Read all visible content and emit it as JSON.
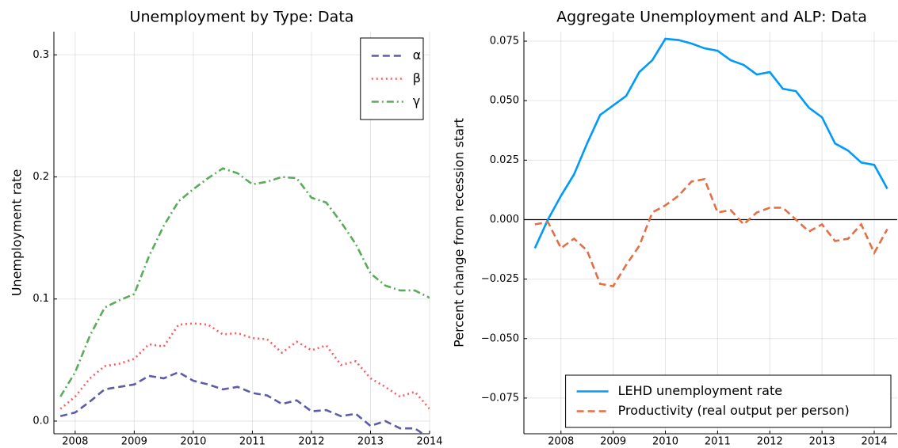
{
  "chart_data": [
    {
      "type": "line",
      "title": "Unemployment by Type: Data",
      "ylabel": "Unemployment rate",
      "x": [
        2007.75,
        2008.0,
        2008.25,
        2008.5,
        2008.75,
        2009.0,
        2009.25,
        2009.5,
        2009.75,
        2010.0,
        2010.25,
        2010.5,
        2010.75,
        2011.0,
        2011.25,
        2011.5,
        2011.75,
        2012.0,
        2012.25,
        2012.5,
        2012.75,
        2013.0,
        2013.25,
        2013.5,
        2013.75,
        2014.0
      ],
      "series": [
        {
          "name": "α",
          "color": "#5d5da6",
          "style": "dash",
          "values": [
            0.004,
            0.007,
            0.016,
            0.026,
            0.028,
            0.03,
            0.037,
            0.035,
            0.04,
            0.033,
            0.03,
            0.026,
            0.028,
            0.023,
            0.021,
            0.014,
            0.017,
            0.008,
            0.009,
            0.004,
            0.006,
            -0.004,
            0.0,
            -0.006,
            -0.006,
            -0.014
          ]
        },
        {
          "name": "β",
          "color": "#ff5a5f",
          "style": "dot",
          "values": [
            0.01,
            0.02,
            0.035,
            0.045,
            0.047,
            0.051,
            0.063,
            0.061,
            0.079,
            0.08,
            0.079,
            0.071,
            0.072,
            0.068,
            0.067,
            0.056,
            0.065,
            0.058,
            0.062,
            0.046,
            0.049,
            0.035,
            0.028,
            0.02,
            0.024,
            0.01
          ]
        },
        {
          "name": "γ",
          "color": "#5aab5a",
          "style": "dashdot",
          "values": [
            0.02,
            0.04,
            0.07,
            0.093,
            0.099,
            0.104,
            0.135,
            0.16,
            0.18,
            0.19,
            0.199,
            0.207,
            0.203,
            0.194,
            0.196,
            0.2,
            0.199,
            0.183,
            0.179,
            0.163,
            0.145,
            0.121,
            0.111,
            0.107,
            0.107,
            0.101
          ]
        }
      ],
      "xlim": [
        2007.64,
        2014.0
      ],
      "xticks": [
        2008,
        2009,
        2010,
        2011,
        2012,
        2013,
        2014
      ],
      "ylim": [
        -0.0104,
        0.319
      ],
      "yticks": [
        {
          "value": 0,
          "label": "0.0"
        },
        0.1,
        0.2,
        0.3
      ],
      "grid": true,
      "legend": "top-right"
    },
    {
      "type": "line",
      "title": "Aggregate Unemployment and ALP: Data",
      "ylabel": "Percent change from recession start",
      "x": [
        2007.5,
        2007.75,
        2008.0,
        2008.25,
        2008.5,
        2008.75,
        2009.0,
        2009.25,
        2009.5,
        2009.75,
        2010.0,
        2010.25,
        2010.5,
        2010.75,
        2011.0,
        2011.25,
        2011.5,
        2011.75,
        2012.0,
        2012.25,
        2012.5,
        2012.75,
        2013.0,
        2013.25,
        2013.5,
        2013.75,
        2014.0,
        2014.25
      ],
      "series": [
        {
          "name": "LEHD unemployment rate",
          "color": "#009af9",
          "style": "solid",
          "values": [
            -0.012,
            0.0,
            0.01,
            0.019,
            0.032,
            0.044,
            0.048,
            0.052,
            0.062,
            0.067,
            0.076,
            0.0755,
            0.074,
            0.072,
            0.071,
            0.067,
            0.065,
            0.061,
            0.062,
            0.055,
            0.054,
            0.047,
            0.043,
            0.032,
            0.029,
            0.024,
            0.023,
            0.013
          ]
        },
        {
          "name": "Productivity (real output per person)",
          "color": "#e26f46",
          "style": "dash",
          "values": [
            -0.002,
            -0.001,
            -0.012,
            -0.008,
            -0.013,
            -0.027,
            -0.028,
            -0.019,
            -0.011,
            0.003,
            0.006,
            0.01,
            0.016,
            0.017,
            0.003,
            0.004,
            -0.002,
            0.003,
            0.005,
            0.005,
            0.0,
            -0.005,
            -0.002,
            -0.009,
            -0.008,
            -0.002,
            -0.014,
            -0.004
          ]
        }
      ],
      "xlim": [
        2007.29,
        2014.44
      ],
      "xticks": [
        2008,
        2009,
        2010,
        2011,
        2012,
        2013,
        2014
      ],
      "ylim": [
        -0.09,
        0.079
      ],
      "yticks": [
        {
          "value": -0.075,
          "label": "−0.075"
        },
        {
          "value": -0.05,
          "label": "−0.050"
        },
        {
          "value": -0.025,
          "label": "−0.025"
        },
        {
          "value": 0,
          "label": "0.000"
        },
        {
          "value": 0.025,
          "label": "0.025"
        },
        {
          "value": 0.05,
          "label": "0.050"
        },
        {
          "value": 0.075,
          "label": "0.075"
        }
      ],
      "hline": 0,
      "grid": true,
      "legend": "bottom-right"
    }
  ]
}
